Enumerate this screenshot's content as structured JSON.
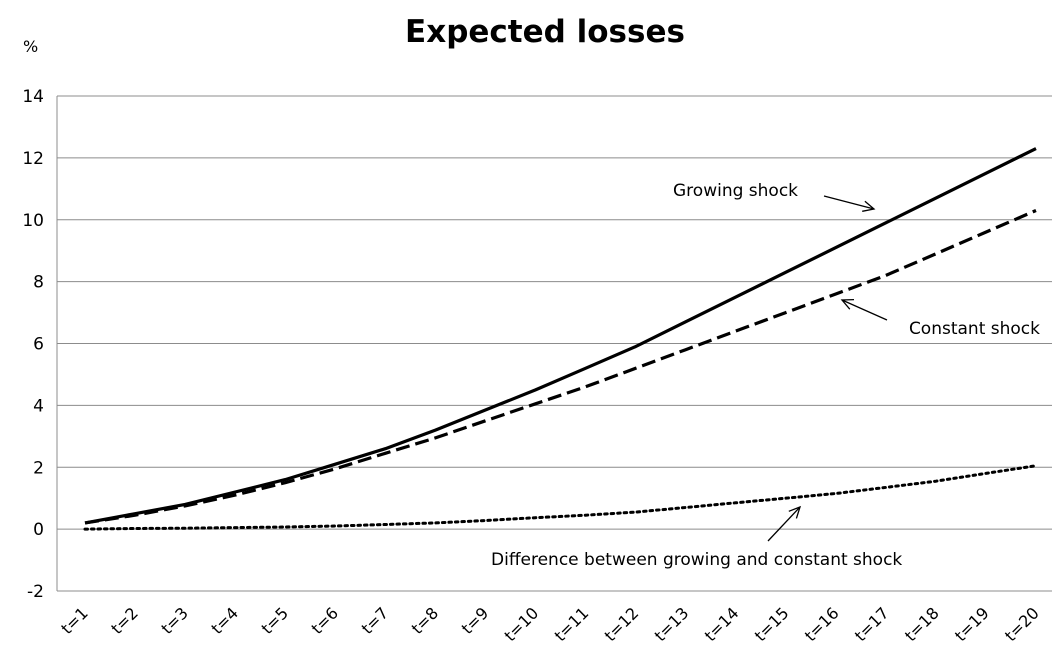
{
  "chart_data": {
    "type": "line",
    "title": "Expected losses",
    "ylabel": "%",
    "xlabel": "",
    "ylim": [
      -2,
      14
    ],
    "yticks": [
      -2,
      0,
      2,
      4,
      6,
      8,
      10,
      12,
      14
    ],
    "grid": true,
    "categories": [
      "t=1",
      "t=2",
      "t=3",
      "t=4",
      "t=5",
      "t=6",
      "t=7",
      "t=8",
      "t=9",
      "t=10",
      "t=11",
      "t=12",
      "t=13",
      "t=14",
      "t=15",
      "t=16",
      "t=17",
      "t=18",
      "t=19",
      "t=20"
    ],
    "series": [
      {
        "name": "Growing shock",
        "style": "solid",
        "color": "#000000",
        "values": [
          0.2,
          0.5,
          0.8,
          1.2,
          1.6,
          2.1,
          2.6,
          3.2,
          3.85,
          4.5,
          5.2,
          5.9,
          6.7,
          7.5,
          8.3,
          9.1,
          9.9,
          10.7,
          11.5,
          12.3
        ]
      },
      {
        "name": "Constant shock",
        "style": "dashed",
        "color": "#000000",
        "values": [
          0.2,
          0.45,
          0.75,
          1.1,
          1.5,
          1.95,
          2.45,
          2.95,
          3.5,
          4.05,
          4.6,
          5.2,
          5.8,
          6.4,
          7.0,
          7.6,
          8.2,
          8.9,
          9.6,
          10.3
        ]
      },
      {
        "name": "Difference between growing and constant shock",
        "style": "dotted",
        "color": "#000000",
        "values": [
          0.0,
          0.02,
          0.03,
          0.05,
          0.07,
          0.1,
          0.15,
          0.2,
          0.28,
          0.37,
          0.45,
          0.55,
          0.7,
          0.85,
          1.0,
          1.15,
          1.35,
          1.55,
          1.8,
          2.05
        ]
      }
    ],
    "annotations": [
      {
        "text": "Growing shock",
        "series": 0
      },
      {
        "text": "Constant shock",
        "series": 1
      },
      {
        "text": "Difference between growing and constant shock",
        "series": 2
      }
    ]
  }
}
